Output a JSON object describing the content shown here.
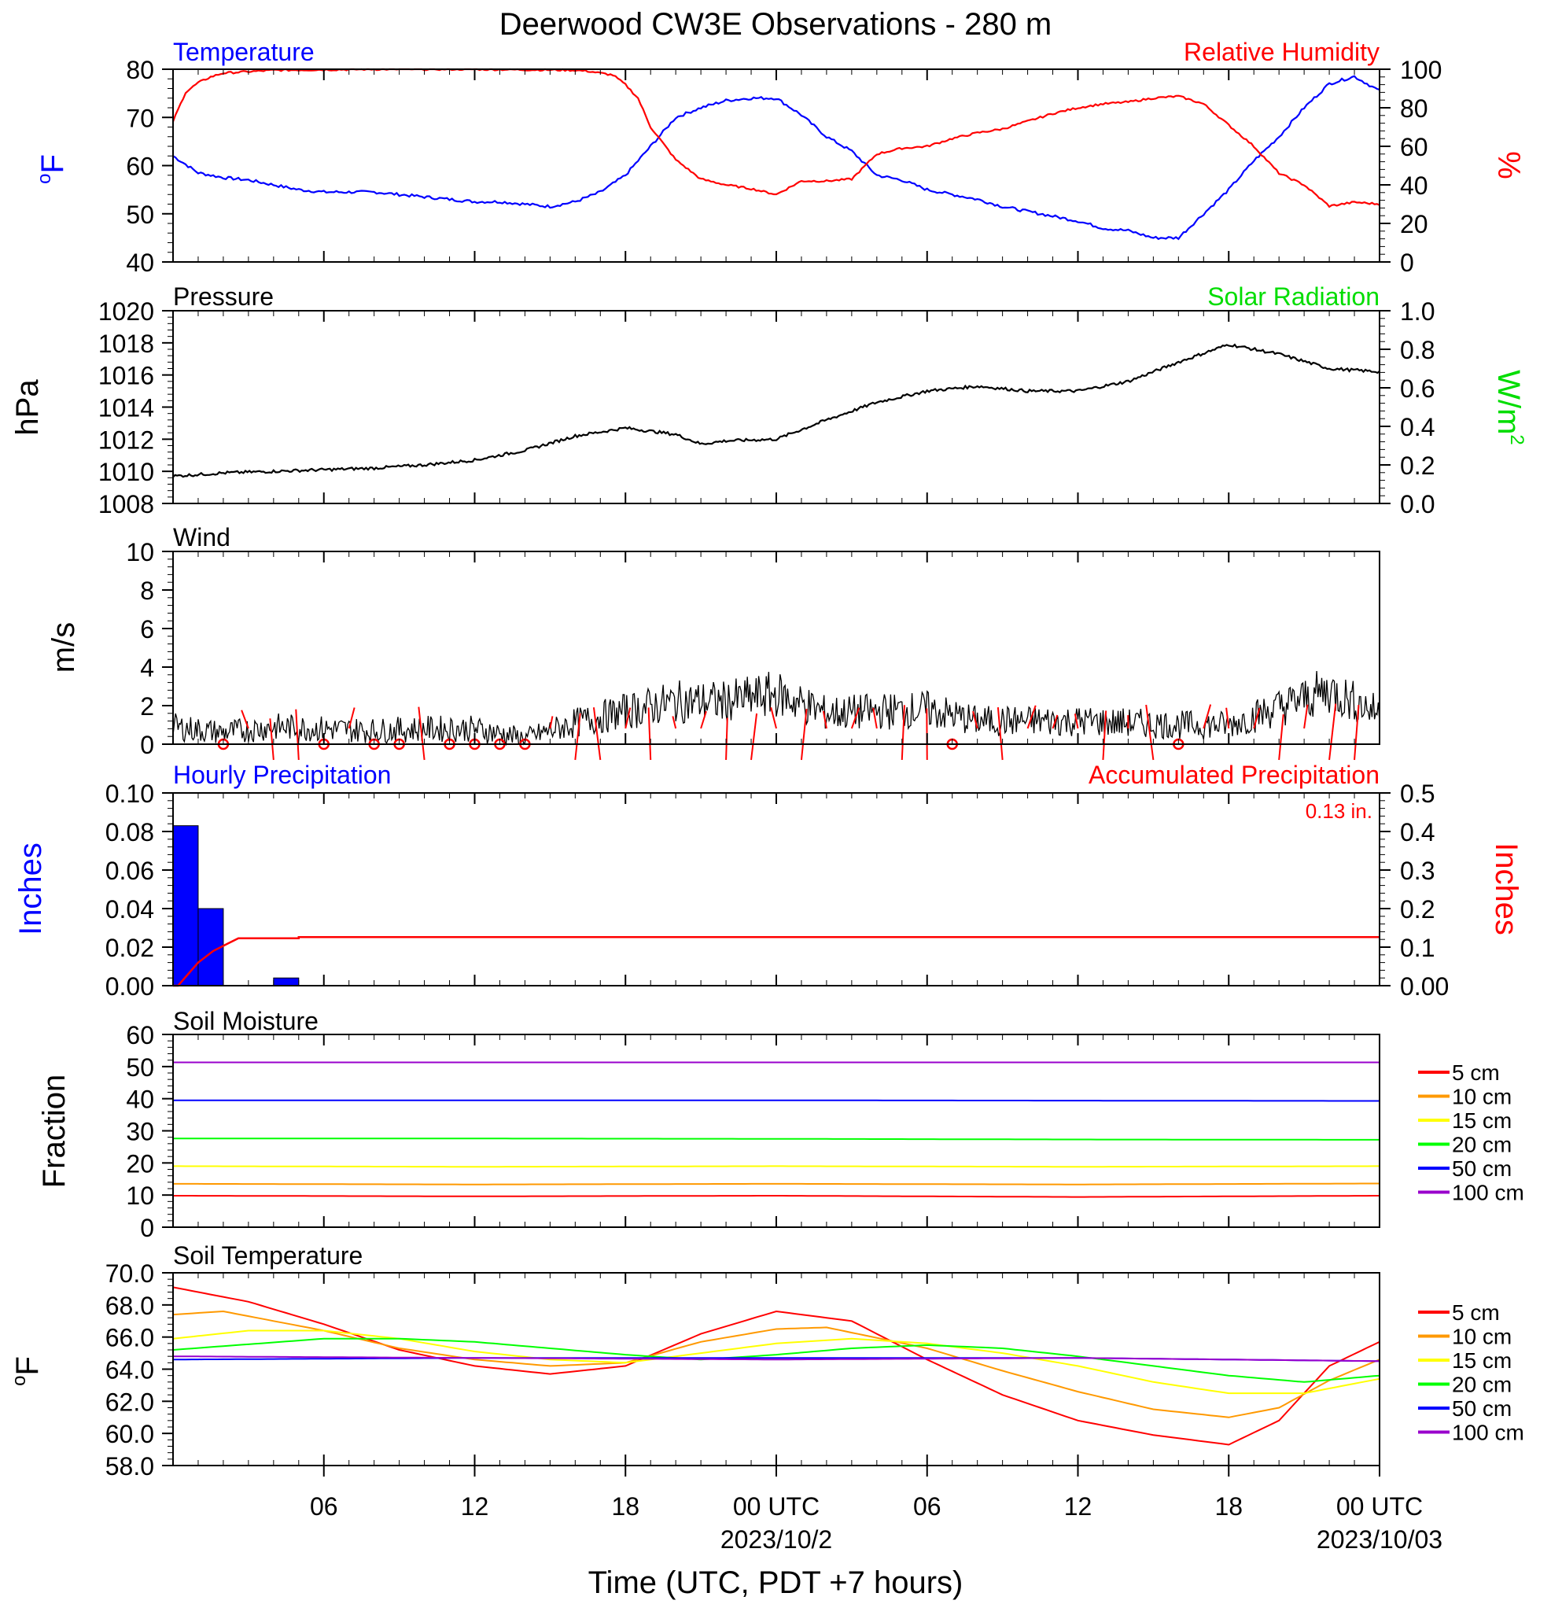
{
  "title": "Deerwood CW3E Observations - 280 m",
  "xaxis": {
    "title": "Time (UTC, PDT +7 hours)",
    "range_hours": [
      0,
      48
    ],
    "ticks": [
      {
        "h": 6,
        "label": "06",
        "sub": ""
      },
      {
        "h": 12,
        "label": "12",
        "sub": ""
      },
      {
        "h": 18,
        "label": "18",
        "sub": ""
      },
      {
        "h": 24,
        "label": "00 UTC",
        "sub": "2023/10/2"
      },
      {
        "h": 30,
        "label": "06",
        "sub": ""
      },
      {
        "h": 36,
        "label": "12",
        "sub": ""
      },
      {
        "h": 42,
        "label": "18",
        "sub": ""
      },
      {
        "h": 48,
        "label": "00 UTC",
        "sub": "2023/10/03"
      }
    ]
  },
  "panels": {
    "temp_rh": {
      "left_title": "Temperature",
      "right_title": "Relative Humidity",
      "left_unit_main": "o",
      "left_unit_rest": "F",
      "right_unit": "%",
      "left_ticks": [
        "80",
        "70",
        "60",
        "50",
        "40"
      ],
      "right_ticks": [
        "100",
        "80",
        "60",
        "40",
        "20",
        "0"
      ],
      "colors": {
        "temp": "#0000ff",
        "rh": "#ff0000"
      }
    },
    "pressure": {
      "left_title": "Pressure",
      "right_title": "Solar Radiation",
      "left_unit": "hPa",
      "right_unit_main": "W/m",
      "right_unit_sup": "2",
      "left_ticks": [
        "1020",
        "1018",
        "1016",
        "1014",
        "1012",
        "1010",
        "1008"
      ],
      "right_ticks": [
        "1.0",
        "0.8",
        "0.6",
        "0.4",
        "0.2",
        "0.0"
      ],
      "colors": {
        "pressure": "#000000",
        "solar_title": "#00dd00"
      }
    },
    "wind": {
      "left_title": "Wind",
      "left_unit": "m/s",
      "left_ticks": [
        "10",
        "8",
        "6",
        "4",
        "2",
        "0"
      ],
      "colors": {
        "speed": "#000000",
        "barbs": "#ff0000"
      }
    },
    "precip": {
      "left_title": "Hourly Precipitation",
      "right_title": "Accumulated Precipitation",
      "total_label": "0.13 in.",
      "left_unit": "Inches",
      "right_unit": "Inches",
      "left_ticks": [
        "0.10",
        "0.08",
        "0.06",
        "0.04",
        "0.02",
        "0.00"
      ],
      "right_ticks": [
        "0.5",
        "0.4",
        "0.3",
        "0.2",
        "0.1",
        "0.00"
      ],
      "colors": {
        "hourly": "#0000ff",
        "accum": "#ff0000"
      }
    },
    "soil_moisture": {
      "left_title": "Soil Moisture",
      "left_unit": "Fraction",
      "left_ticks": [
        "60",
        "50",
        "40",
        "30",
        "20",
        "10",
        "0"
      ]
    },
    "soil_temp": {
      "left_title": "Soil Temperature",
      "left_unit_main": "o",
      "left_unit_rest": "F",
      "left_ticks": [
        "70.0",
        "68.0",
        "66.0",
        "64.0",
        "62.0",
        "60.0",
        "58.0"
      ]
    }
  },
  "legend_labels": [
    "5 cm",
    "10 cm",
    "15 cm",
    "20 cm",
    "50 cm",
    "100 cm"
  ],
  "legend_colors": [
    "#ff0000",
    "#ff9900",
    "#ffff00",
    "#00ff00",
    "#0000ff",
    "#9900cc"
  ],
  "chart_data": [
    {
      "type": "line",
      "panel": "temp_rh",
      "x_unit": "hours since 2023-10-01 00 UTC",
      "series": [
        {
          "name": "Temperature",
          "axis": "left",
          "ylim": [
            40,
            80
          ],
          "x": [
            0,
            1,
            2,
            3,
            4,
            5,
            6,
            7,
            8,
            9,
            10,
            11,
            12,
            13,
            14,
            15,
            16,
            17,
            18,
            19,
            20,
            21,
            22,
            23,
            24,
            25,
            26,
            27,
            28,
            29,
            30,
            31,
            32,
            33,
            34,
            35,
            36,
            37,
            38,
            39,
            40,
            41,
            42,
            43,
            44,
            45,
            46,
            47,
            48
          ],
          "y": [
            62,
            58.5,
            57.5,
            57,
            56,
            55,
            54.5,
            54.5,
            54.5,
            54,
            53.5,
            53,
            52.5,
            52.5,
            52,
            51.5,
            52.5,
            54.5,
            58,
            64,
            70,
            72,
            73.5,
            74,
            74,
            70.5,
            66,
            63,
            58,
            57,
            55,
            54,
            53,
            51.5,
            50.5,
            49.5,
            48.5,
            47,
            46.5,
            45,
            45,
            50,
            55,
            61,
            66,
            72,
            77,
            78.5,
            75.5
          ]
        },
        {
          "name": "Relative Humidity",
          "axis": "right",
          "ylim": [
            0,
            100
          ],
          "x": [
            0,
            0.5,
            1,
            1.5,
            2,
            4,
            8,
            12,
            16,
            16.5,
            17,
            17.5,
            18,
            18.5,
            19,
            20,
            21,
            22,
            23,
            24,
            25,
            26,
            27,
            28,
            29,
            30,
            31,
            32,
            33,
            34,
            35,
            36,
            37,
            38,
            39,
            40,
            41,
            42,
            43,
            44,
            45,
            46,
            47,
            48
          ],
          "y": [
            73,
            88,
            93,
            96,
            98,
            99.5,
            100,
            100,
            99.5,
            99,
            98,
            97,
            92,
            85,
            70,
            53,
            43,
            40,
            38,
            35,
            42,
            42,
            43,
            56,
            59,
            60,
            64,
            67,
            69,
            73,
            77,
            80,
            82,
            83,
            85,
            86,
            82,
            71,
            60,
            46,
            40,
            29,
            31,
            30
          ]
        }
      ]
    },
    {
      "type": "line",
      "panel": "pressure",
      "series": [
        {
          "name": "Pressure",
          "axis": "left",
          "ylim": [
            1008,
            1020
          ],
          "x": [
            0,
            2,
            4,
            6,
            8,
            10,
            12,
            14,
            16,
            18,
            20,
            21,
            22,
            24,
            26,
            28,
            30,
            32,
            34,
            36,
            38,
            40,
            42,
            44,
            46,
            48
          ],
          "y": [
            1009.7,
            1009.9,
            1010,
            1010.1,
            1010.2,
            1010.4,
            1010.7,
            1011.3,
            1012.2,
            1012.7,
            1012.3,
            1011.7,
            1011.9,
            1012,
            1013.2,
            1014.3,
            1015,
            1015.3,
            1015,
            1015,
            1015.6,
            1016.8,
            1017.9,
            1017.3,
            1016.4,
            1016.2
          ]
        }
      ]
    },
    {
      "type": "line",
      "panel": "wind",
      "series": [
        {
          "name": "Wind",
          "axis": "left",
          "ylim": [
            0,
            10
          ],
          "x": [
            0,
            2,
            4,
            6,
            8,
            10,
            12,
            14,
            16,
            18,
            20,
            22,
            24,
            26,
            28,
            30,
            32,
            34,
            36,
            38,
            40,
            42,
            44,
            46,
            48
          ],
          "y": [
            0.9,
            0.6,
            0.9,
            0.8,
            0.7,
            0.8,
            0.8,
            0.3,
            1.1,
            1.7,
            2.2,
            2.2,
            2.6,
            1.6,
            1.7,
            1.8,
            1.2,
            1.2,
            1.2,
            1.1,
            1.0,
            1.0,
            1.9,
            2.8,
            1.6
          ]
        }
      ]
    },
    {
      "type": "bar",
      "panel": "precip",
      "series": [
        {
          "name": "Hourly Precipitation",
          "axis": "left",
          "ylim": [
            0,
            0.1
          ],
          "x": [
            0.5,
            1.5,
            4.5
          ],
          "y": [
            0.083,
            0.04,
            0.004
          ]
        },
        {
          "name": "Accumulated Precipitation",
          "axis": "right",
          "ylim": [
            0,
            0.5
          ],
          "x": [
            0,
            0.2,
            1,
            1.6,
            2.2,
            2.6,
            3,
            5,
            5,
            48
          ],
          "y": [
            0,
            0,
            0.06,
            0.09,
            0.11,
            0.123,
            0.123,
            0.123,
            0.126,
            0.126
          ]
        }
      ]
    },
    {
      "type": "line",
      "panel": "soil_moisture",
      "ylim": [
        0,
        60
      ],
      "series": [
        {
          "name": "5 cm",
          "x": [
            0,
            12,
            24,
            36,
            48
          ],
          "y": [
            9.8,
            9.6,
            9.8,
            9.4,
            9.8
          ]
        },
        {
          "name": "10 cm",
          "x": [
            0,
            12,
            24,
            36,
            48
          ],
          "y": [
            13.5,
            13.3,
            13.5,
            13.3,
            13.6
          ]
        },
        {
          "name": "15 cm",
          "x": [
            0,
            12,
            24,
            36,
            48
          ],
          "y": [
            19,
            18.8,
            19,
            18.8,
            19
          ]
        },
        {
          "name": "20 cm",
          "x": [
            0,
            12,
            24,
            36,
            48
          ],
          "y": [
            27.6,
            27.6,
            27.5,
            27.3,
            27.2
          ]
        },
        {
          "name": "50 cm",
          "x": [
            0,
            12,
            24,
            36,
            48
          ],
          "y": [
            39.5,
            39.5,
            39.5,
            39.4,
            39.3
          ]
        },
        {
          "name": "100 cm",
          "x": [
            0,
            12,
            24,
            36,
            48
          ],
          "y": [
            51.3,
            51.3,
            51.3,
            51.3,
            51.3
          ]
        }
      ]
    },
    {
      "type": "line",
      "panel": "soil_temp",
      "ylim": [
        58,
        70
      ],
      "series": [
        {
          "name": "5 cm",
          "x": [
            0,
            3,
            6,
            9,
            12,
            15,
            18,
            21,
            24,
            27,
            30,
            33,
            36,
            39,
            42,
            44,
            46,
            48
          ],
          "y": [
            69.1,
            68.2,
            66.8,
            65.2,
            64.2,
            63.7,
            64.2,
            66.2,
            67.6,
            67.0,
            64.6,
            62.4,
            60.8,
            59.9,
            59.3,
            60.8,
            64.2,
            65.7
          ]
        },
        {
          "name": "10 cm",
          "x": [
            0,
            2,
            6,
            9,
            12,
            15,
            18,
            21,
            24,
            26,
            30,
            33,
            36,
            39,
            42,
            44,
            46,
            48
          ],
          "y": [
            67.4,
            67.6,
            66.4,
            65.3,
            64.6,
            64.2,
            64.4,
            65.7,
            66.5,
            66.6,
            65.3,
            63.9,
            62.6,
            61.5,
            61.0,
            61.6,
            63.3,
            64.6
          ]
        },
        {
          "name": "15 cm",
          "x": [
            0,
            3,
            6,
            9,
            12,
            15,
            18,
            21,
            24,
            27,
            30,
            33,
            36,
            39,
            42,
            45,
            48
          ],
          "y": [
            65.9,
            66.4,
            66.4,
            65.9,
            65.1,
            64.6,
            64.4,
            65.0,
            65.6,
            65.9,
            65.6,
            65.0,
            64.2,
            63.2,
            62.5,
            62.5,
            63.4
          ]
        },
        {
          "name": "20 cm",
          "x": [
            0,
            6,
            9,
            12,
            15,
            18,
            21,
            24,
            27,
            30,
            33,
            36,
            39,
            42,
            45,
            48
          ],
          "y": [
            65.2,
            65.9,
            65.9,
            65.7,
            65.3,
            64.9,
            64.6,
            64.9,
            65.3,
            65.5,
            65.3,
            64.8,
            64.2,
            63.6,
            63.2,
            63.6
          ]
        },
        {
          "name": "50 cm",
          "x": [
            0,
            12,
            24,
            36,
            48
          ],
          "y": [
            64.6,
            64.7,
            64.7,
            64.7,
            64.5
          ]
        },
        {
          "name": "100 cm",
          "x": [
            0,
            12,
            24,
            36,
            48
          ],
          "y": [
            64.8,
            64.7,
            64.6,
            64.7,
            64.5
          ]
        }
      ]
    }
  ]
}
